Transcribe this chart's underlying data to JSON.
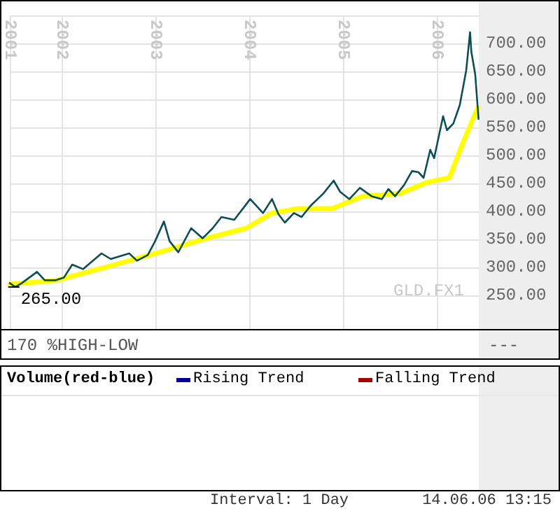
{
  "chart_data": [
    {
      "type": "line",
      "xlim": [
        "2001-06-14",
        "2006-06-14"
      ],
      "ylim": [
        190,
        750
      ],
      "xticks": [
        {
          "value": "2001-06-14",
          "label": "2001"
        },
        {
          "value": "2002-01-01",
          "label": "2002"
        },
        {
          "value": "2003-01-01",
          "label": "2003"
        },
        {
          "value": "2004-01-01",
          "label": "2004"
        },
        {
          "value": "2005-01-01",
          "label": "2005"
        },
        {
          "value": "2006-01-01",
          "label": "2006"
        }
      ],
      "yticks": [
        {
          "value": 250,
          "label": "250.00"
        },
        {
          "value": 300,
          "label": "300.00"
        },
        {
          "value": 350,
          "label": "350.00"
        },
        {
          "value": 400,
          "label": "400.00"
        },
        {
          "value": 450,
          "label": "450.00"
        },
        {
          "value": 500,
          "label": "500.00"
        },
        {
          "value": 550,
          "label": "550.00"
        },
        {
          "value": 600,
          "label": "600.00"
        },
        {
          "value": 650,
          "label": "650.00"
        },
        {
          "value": 700,
          "label": "700.00"
        }
      ],
      "grid": true,
      "marker": "none",
      "line_style": "solid",
      "series": [
        {
          "color": "#ffff00",
          "x": [
            "2001-06-14",
            "2001-12-14",
            "2002-07-06",
            "2003-01-18",
            "2003-07-21",
            "2003-12-22",
            "2004-03-31",
            "2004-07-09",
            "2004-11-21",
            "2005-03-18",
            "2005-08-12",
            "2005-11-25",
            "2006-02-20",
            "2006-04-11",
            "2006-06-10"
          ],
          "values": [
            270,
            277,
            302,
            327,
            352,
            370,
            397,
            405,
            405,
            427,
            432,
            452,
            460,
            520,
            585
          ]
        },
        {
          "color": "#0d4d55",
          "x": [
            "2001-06-14",
            "2001-07-05",
            "2001-07-31",
            "2001-09-28",
            "2001-10-28",
            "2001-12-08",
            "2002-01-11",
            "2002-02-12",
            "2002-03-26",
            "2002-06-06",
            "2002-07-12",
            "2002-09-22",
            "2002-10-22",
            "2002-12-03",
            "2003-01-01",
            "2003-02-04",
            "2003-02-26",
            "2003-04-01",
            "2003-05-21",
            "2003-07-05",
            "2003-08-13",
            "2003-09-16",
            "2003-11-05",
            "2004-01-06",
            "2004-02-25",
            "2004-03-31",
            "2004-04-25",
            "2004-05-20",
            "2004-06-24",
            "2004-07-24",
            "2004-08-28",
            "2004-10-17",
            "2004-11-26",
            "2004-12-21",
            "2005-01-26",
            "2005-03-08",
            "2005-04-23",
            "2005-06-02",
            "2005-06-27",
            "2005-07-23",
            "2005-08-27",
            "2005-09-27",
            "2005-10-22",
            "2005-11-11",
            "2005-12-07",
            "2005-12-22",
            "2006-01-26",
            "2006-02-10",
            "2006-03-07",
            "2006-04-01",
            "2006-04-26",
            "2006-05-11",
            "2006-05-16",
            "2006-05-31",
            "2006-06-13"
          ],
          "values": [
            272,
            265,
            272,
            292,
            277,
            277,
            282,
            305,
            297,
            325,
            315,
            325,
            312,
            322,
            347,
            382,
            347,
            327,
            370,
            352,
            370,
            390,
            385,
            422,
            397,
            422,
            395,
            380,
            397,
            390,
            410,
            432,
            455,
            435,
            422,
            442,
            427,
            422,
            440,
            427,
            447,
            472,
            470,
            460,
            510,
            495,
            570,
            545,
            557,
            590,
            652,
            720,
            685,
            645,
            565
          ]
        }
      ],
      "annotations": [
        {
          "text": "265.00",
          "x": "2001-07-05",
          "y": 265
        },
        "170 %HIGH-LOW",
        "GLD.FX1",
        "---"
      ]
    },
    {
      "type": "other",
      "title": "Volume(red-blue)",
      "annotations": [
        "Rising Trend",
        "Falling Trend",
        "Interval: 1 Day",
        "14.06.06 13:15"
      ]
    }
  ]
}
